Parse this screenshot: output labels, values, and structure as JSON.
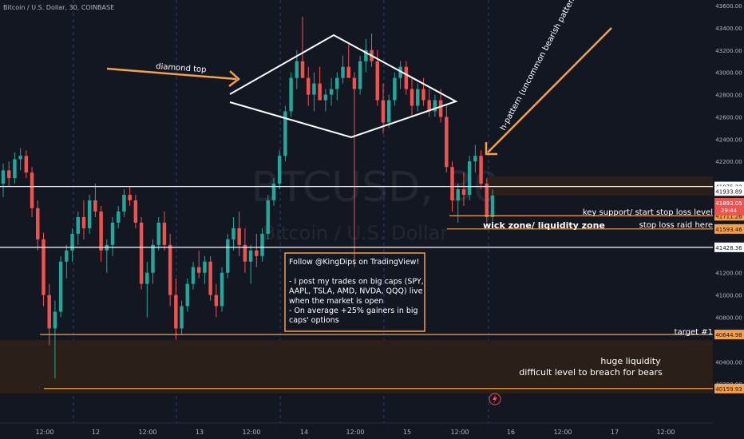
{
  "header": {
    "symbol_line": "Bitcoin / U.S. Dollar, 30, COINBASE"
  },
  "watermark": {
    "ticker": "BTCUSD, 30",
    "name": "Bitcoin / U.S. Dollar"
  },
  "colors": {
    "background": "#131722",
    "up": "#26a69a",
    "down": "#ef5350",
    "orange": "#f5a04a",
    "white_line": "#ffffff",
    "grid_dash": "#2a4a86",
    "zone_fill": "#2a2017",
    "axis_text": "#b2b5be"
  },
  "annotations": {
    "diamond_top": "diamond top",
    "h_pattern": "h-pattern (uncommon bearish pattern)",
    "key_support": "key support/ start stop loss level",
    "wick_zone": "wick zone/ liquidity zone",
    "stop_loss_raid": "stop loss raid here",
    "target": "target #1",
    "huge_liquidity_1": "huge liquidity",
    "huge_liquidity_2": "difficult level to breach for bears"
  },
  "promo": {
    "lines": [
      "Follow @KingDips on TradingView!",
      "",
      "- I post my trades on big caps (SPY,",
      "AAPL, TSLA, AMD, NVDA, QQQ) live",
      "when the market is open",
      "- On average +25% gainers in big",
      "caps' options"
    ]
  },
  "price_badges": {
    "current_price": "41893.05",
    "countdown": "29:44"
  },
  "chart_data": {
    "type": "candlestick",
    "y_range": [
      39850,
      43650
    ],
    "y_ticks": [
      {
        "value": 43600,
        "label": "43600.00"
      },
      {
        "value": 43400,
        "label": "43400.00"
      },
      {
        "value": 43200,
        "label": "43200.00"
      },
      {
        "value": 43000,
        "label": "43000.00"
      },
      {
        "value": 42800,
        "label": "42800.00"
      },
      {
        "value": 42600,
        "label": "42600.00"
      },
      {
        "value": 42400,
        "label": "42400.00"
      },
      {
        "value": 42200,
        "label": "42200.00"
      },
      {
        "value": 41200,
        "label": "41200.00"
      },
      {
        "value": 41000,
        "label": "41000.00"
      },
      {
        "value": 40800,
        "label": "40800.00"
      },
      {
        "value": 40400,
        "label": "40400.00"
      },
      {
        "value": 40200,
        "label": "40200.00"
      }
    ],
    "x_ticks": [
      "12:00",
      "12",
      "12:00",
      "13",
      "12:00",
      "14",
      "12:00",
      "15",
      "12:00",
      "16",
      "12:00",
      "17",
      "12:00"
    ],
    "levels": [
      {
        "name": "upper-white",
        "value": 41975.22,
        "label": "41975.22",
        "style": "white"
      },
      {
        "name": "upper-badge",
        "value": 41933.89,
        "label": "41933.89",
        "style": "white-badge"
      },
      {
        "name": "key-support",
        "value": 41711.26,
        "label": "41711.26",
        "style": "orange"
      },
      {
        "name": "stop-loss",
        "value": 41593.46,
        "label": "41593.46",
        "style": "orange"
      },
      {
        "name": "lower-white",
        "value": 41428.36,
        "label": "41428.36",
        "style": "white"
      },
      {
        "name": "target-1",
        "value": 40644.98,
        "label": "40644.98",
        "style": "orange"
      },
      {
        "name": "liquidity-bottom",
        "value": 40159.93,
        "label": "40159.93",
        "style": "orange"
      }
    ],
    "candles_ohlc": [
      [
        42000,
        42180,
        41880,
        42120
      ],
      [
        42120,
        42200,
        41980,
        42050
      ],
      [
        42050,
        42280,
        42000,
        42220
      ],
      [
        42220,
        42320,
        42120,
        42250
      ],
      [
        42250,
        42300,
        42050,
        42100
      ],
      [
        42100,
        42150,
        41700,
        41780
      ],
      [
        41780,
        41850,
        41400,
        41500
      ],
      [
        41500,
        41560,
        40900,
        41000
      ],
      [
        41000,
        41100,
        40550,
        40700
      ],
      [
        40700,
        40950,
        40250,
        40850
      ],
      [
        40850,
        41350,
        40800,
        41300
      ],
      [
        41300,
        41450,
        41150,
        41400
      ],
      [
        41400,
        41600,
        41300,
        41550
      ],
      [
        41550,
        41750,
        41450,
        41700
      ],
      [
        41700,
        41850,
        41500,
        41600
      ],
      [
        41600,
        41900,
        41550,
        41850
      ],
      [
        41850,
        42000,
        41700,
        41750
      ],
      [
        41750,
        41800,
        41300,
        41400
      ],
      [
        41400,
        41500,
        41200,
        41450
      ],
      [
        41450,
        41700,
        41350,
        41650
      ],
      [
        41650,
        41800,
        41600,
        41750
      ],
      [
        41750,
        41950,
        41700,
        41900
      ],
      [
        41900,
        41980,
        41800,
        41850
      ],
      [
        41850,
        41900,
        41600,
        41650
      ],
      [
        41650,
        41700,
        41050,
        41100
      ],
      [
        41100,
        41300,
        40800,
        41200
      ],
      [
        41200,
        41500,
        41100,
        41450
      ],
      [
        41450,
        41700,
        41400,
        41650
      ],
      [
        41650,
        41750,
        41400,
        41450
      ],
      [
        41450,
        41550,
        40900,
        41000
      ],
      [
        41000,
        41150,
        40600,
        40700
      ],
      [
        40700,
        40950,
        40650,
        40900
      ],
      [
        40900,
        41150,
        40850,
        41100
      ],
      [
        41100,
        41300,
        41050,
        41250
      ],
      [
        41250,
        41400,
        41150,
        41200
      ],
      [
        41200,
        41350,
        41100,
        41300
      ],
      [
        41300,
        41350,
        40950,
        41000
      ],
      [
        41000,
        41100,
        40800,
        40900
      ],
      [
        40900,
        41250,
        40850,
        41200
      ],
      [
        41200,
        41550,
        41150,
        41500
      ],
      [
        41500,
        41700,
        41400,
        41600
      ],
      [
        41600,
        41750,
        41350,
        41450
      ],
      [
        41450,
        41600,
        41200,
        41300
      ],
      [
        41300,
        41450,
        41100,
        41400
      ],
      [
        41400,
        41550,
        41250,
        41350
      ],
      [
        41350,
        41600,
        41300,
        41550
      ],
      [
        41550,
        41900,
        41500,
        41850
      ],
      [
        41850,
        42050,
        41800,
        42000
      ],
      [
        42000,
        42300,
        41950,
        42250
      ],
      [
        42250,
        42700,
        42200,
        42650
      ],
      [
        42650,
        43000,
        42600,
        42950
      ],
      [
        42950,
        43200,
        42850,
        43100
      ],
      [
        43100,
        43500,
        42950,
        42950
      ],
      [
        42950,
        43050,
        42700,
        42800
      ],
      [
        42800,
        43000,
        42650,
        42900
      ],
      [
        42900,
        43050,
        42800,
        42750
      ],
      [
        42750,
        42850,
        42650,
        42800
      ],
      [
        42800,
        42950,
        42700,
        42850
      ],
      [
        42850,
        43000,
        42750,
        42950
      ],
      [
        42950,
        43150,
        42900,
        43050
      ],
      [
        43050,
        43250,
        42950,
        42950
      ],
      [
        42950,
        43000,
        41250,
        42850
      ],
      [
        42850,
        43150,
        42800,
        43100
      ],
      [
        43100,
        43300,
        43000,
        43200
      ],
      [
        43200,
        43350,
        43050,
        43100
      ],
      [
        43100,
        43200,
        42700,
        42750
      ],
      [
        42750,
        42900,
        42450,
        42550
      ],
      [
        42550,
        42800,
        42500,
        42750
      ],
      [
        42750,
        43000,
        42700,
        42950
      ],
      [
        42950,
        43100,
        42850,
        43050
      ],
      [
        43050,
        43100,
        42800,
        42850
      ],
      [
        42850,
        42950,
        42600,
        42700
      ],
      [
        42700,
        42900,
        42650,
        42850
      ],
      [
        42850,
        42950,
        42700,
        42750
      ],
      [
        42750,
        42850,
        42600,
        42650
      ],
      [
        42650,
        42800,
        42600,
        42750
      ],
      [
        42750,
        42850,
        42550,
        42600
      ],
      [
        42600,
        42700,
        42100,
        42150
      ],
      [
        42150,
        42200,
        41750,
        41850
      ],
      [
        41850,
        42000,
        41650,
        41950
      ],
      [
        41950,
        42100,
        41800,
        41900
      ],
      [
        41900,
        42250,
        41850,
        42200
      ],
      [
        42200,
        42350,
        42100,
        42250
      ],
      [
        42250,
        42300,
        41950,
        42000
      ],
      [
        42000,
        42050,
        41650,
        41700
      ],
      [
        41700,
        41950,
        41650,
        41893
      ]
    ]
  }
}
